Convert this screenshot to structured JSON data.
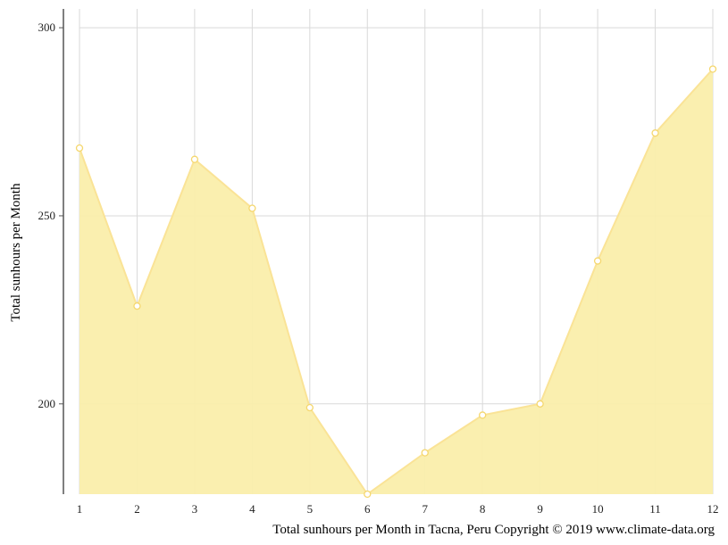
{
  "chart_data": {
    "type": "area",
    "x": [
      1,
      2,
      3,
      4,
      5,
      6,
      7,
      8,
      9,
      10,
      11,
      12
    ],
    "series": [
      {
        "values": [
          268,
          226,
          265,
          252,
          199,
          176,
          187,
          197,
          200,
          238,
          272,
          289
        ]
      }
    ],
    "ylabel": "Total sunhours per Month",
    "caption": "Total sunhours per Month in Tacna, Peru Copyright © 2019 www.climate-data.org",
    "yticks": [
      200,
      250,
      300
    ],
    "ylim": [
      176,
      305
    ],
    "xlim": [
      1,
      12
    ],
    "grid": true,
    "colors": {
      "fill": "#faeeab",
      "line": "#fae396",
      "marker_stroke": "#f5d76e",
      "marker_fill": "#ffffff",
      "grid": "#d9d9d9",
      "axis": "#555555"
    }
  }
}
